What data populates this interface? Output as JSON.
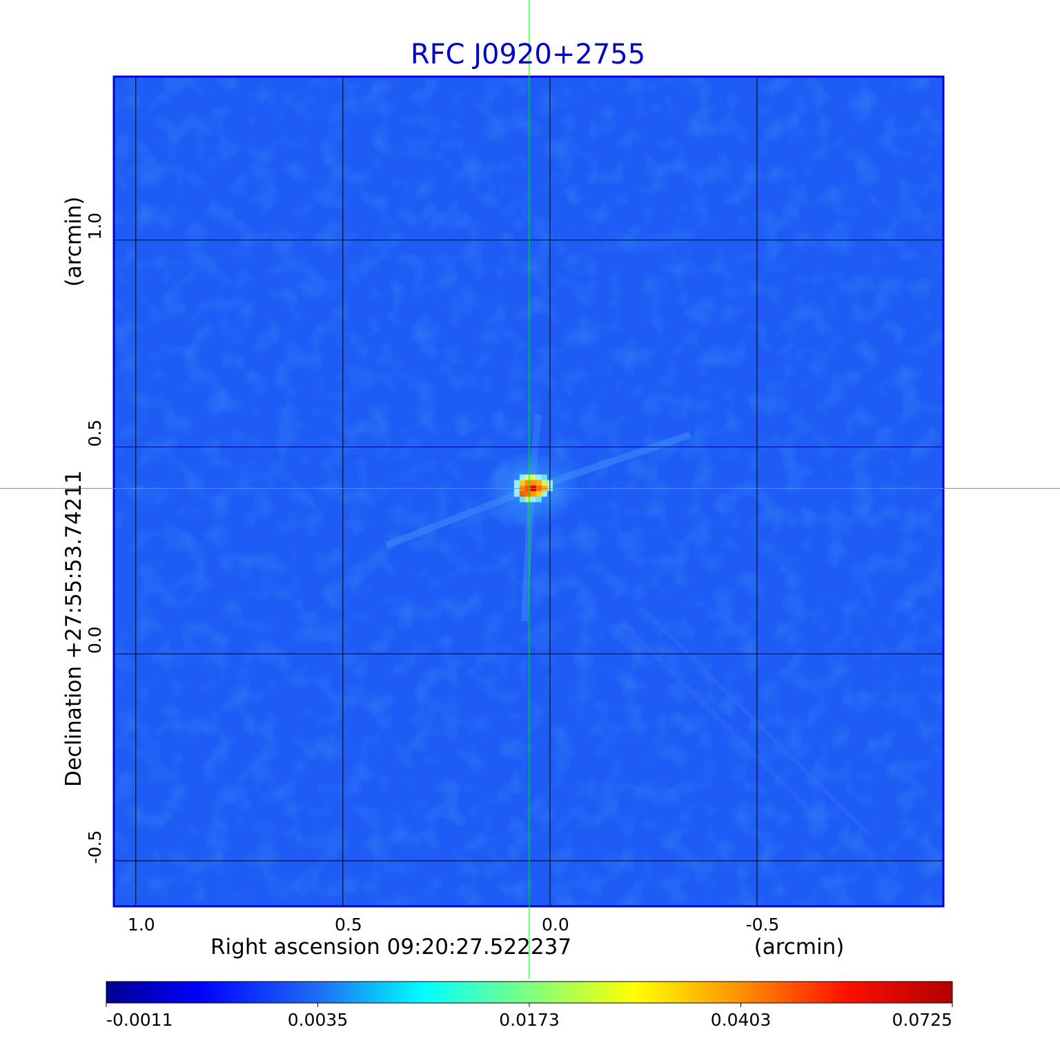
{
  "chart_data": {
    "type": "heatmap",
    "title": "RFC J0920+2755",
    "xlabel": "Right ascension  09:20:27.522237",
    "xunit": "(arcmin)",
    "ylabel": "Declination  +27:55:53.74211",
    "yunit": "(arcmin)",
    "x_ticks": [
      "1.0",
      "0.5",
      "0.0",
      "-0.5"
    ],
    "x_tick_values": [
      1.0,
      0.5,
      0.0,
      -0.5
    ],
    "y_ticks": [
      "1.0",
      "0.5",
      "0.0",
      "-0.5"
    ],
    "y_tick_values": [
      1.0,
      0.5,
      0.0,
      -0.5
    ],
    "xlim": [
      1.053,
      -0.95
    ],
    "ylim": [
      -0.61,
      1.395
    ],
    "grid": true,
    "colormap": "jet",
    "colorbar_ticks": [
      "-0.0011",
      "0.0035",
      "0.0173",
      "0.0403",
      "0.0725"
    ],
    "colorbar_values": [
      -0.0011,
      0.0035,
      0.0173,
      0.0403,
      0.0725
    ],
    "peak": {
      "x": 0.04,
      "y": 0.4,
      "value": 0.0725
    },
    "crosshair": {
      "x": 0.05,
      "y": 0.4
    },
    "colors": {
      "title": "#0000cc",
      "frame": "#0000dd",
      "crosshair": "#00ee00",
      "background": "#1e5cf5"
    }
  }
}
